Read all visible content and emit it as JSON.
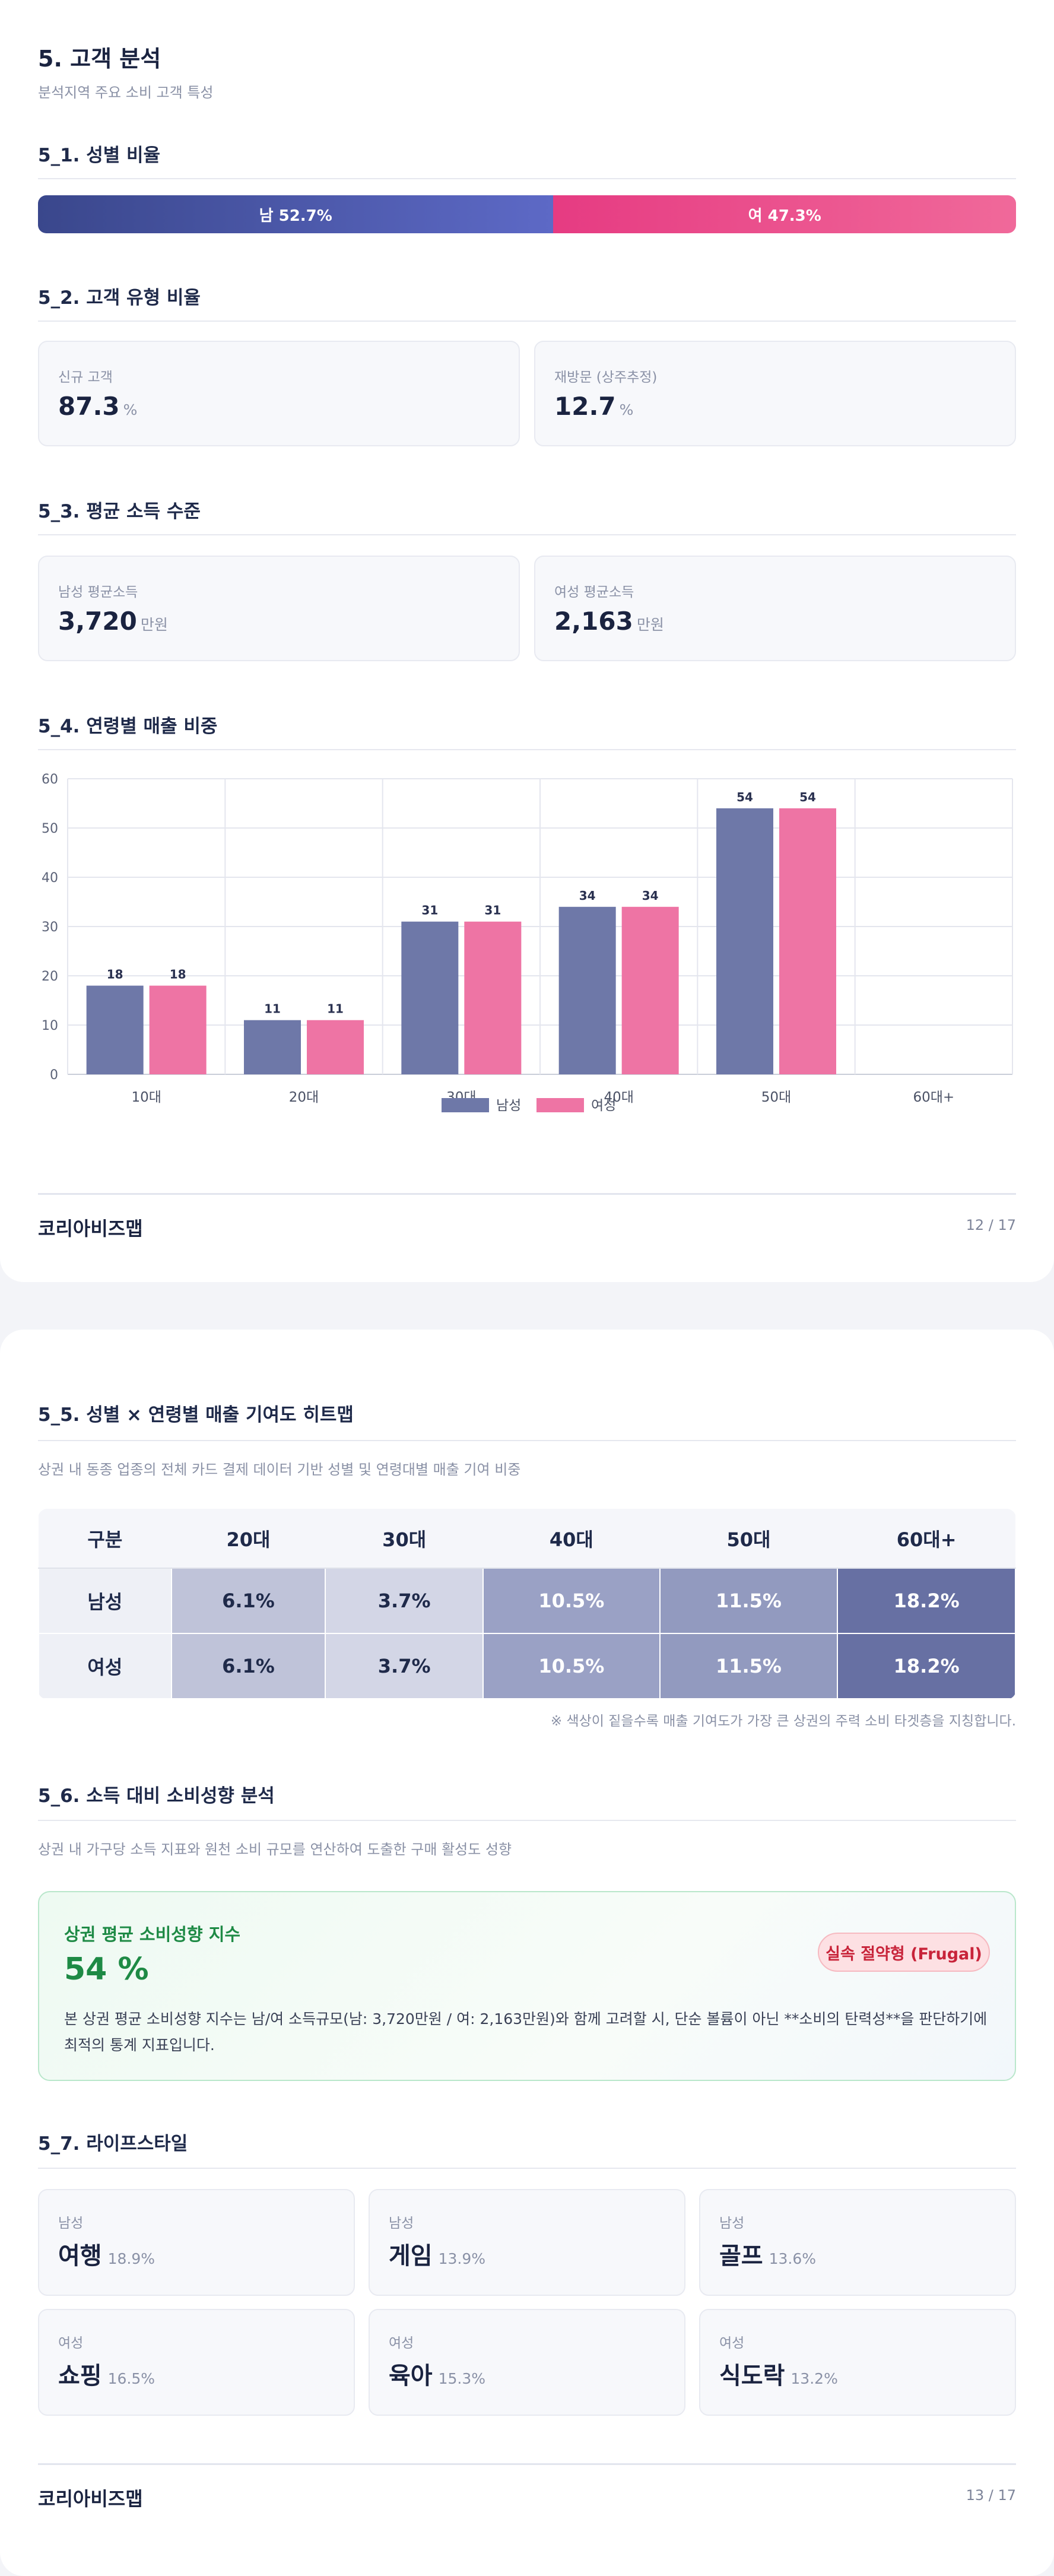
{
  "page1": {
    "title": "5. 고객 분석",
    "subtitle": "분석지역 주요 소비 고객 특성",
    "gender_ratio": {
      "heading": "5_1. 성별 비율",
      "male_label": "남 52.7%",
      "female_label": "여 47.3%",
      "male_share": 52.7,
      "female_share": 47.3,
      "male_color": "#4a56a8",
      "female_color": "#ec4f8d"
    },
    "customer_type": {
      "heading": "5_2. 고객 유형 비율",
      "cards": [
        {
          "label": "신규 고객",
          "value": "87.3",
          "unit": "%"
        },
        {
          "label": "재방문 (상주추정)",
          "value": "12.7",
          "unit": "%"
        }
      ]
    },
    "income": {
      "heading": "5_3. 평균 소득 수준",
      "cards": [
        {
          "label": "남성 평균소득",
          "value": "3,720",
          "unit": "만원"
        },
        {
          "label": "여성 평균소득",
          "value": "2,163",
          "unit": "만원"
        }
      ]
    },
    "age_sales": {
      "heading": "5_4. 연령별 매출 비중"
    },
    "footer": {
      "brand": "코리아비즈맵",
      "page": "12 / 17"
    }
  },
  "chart_data": {
    "type": "bar",
    "categories": [
      "10대",
      "20대",
      "30대",
      "40대",
      "50대",
      "60대+"
    ],
    "series": [
      {
        "name": "남성",
        "values": [
          18,
          11,
          31,
          34,
          54,
          null
        ],
        "color": "#6e78a8"
      },
      {
        "name": "여성",
        "values": [
          18,
          11,
          31,
          34,
          54,
          null
        ],
        "color": "#ee74a4"
      }
    ],
    "ylim": [
      0,
      60
    ],
    "yticks": [
      0,
      10,
      20,
      30,
      40,
      50,
      60
    ],
    "grid": true,
    "legend": "bottom",
    "title": "",
    "xlabel": "",
    "ylabel": ""
  },
  "page2": {
    "heatmap": {
      "heading": "5_5. 성별 × 연령별 매출 기여도 히트맵",
      "description": "상권 내 동종 업종의 전체 카드 결제 데이터 기반 성별 및 연령대별 매출 기여 비중",
      "columns": [
        "구분",
        "20대",
        "30대",
        "40대",
        "50대",
        "60대+"
      ],
      "rows": [
        {
          "label": "남성",
          "cells": [
            "6.1%",
            "3.7%",
            "10.5%",
            "11.5%",
            "18.2%"
          ]
        },
        {
          "label": "여성",
          "cells": [
            "6.1%",
            "3.7%",
            "10.5%",
            "11.5%",
            "18.2%"
          ]
        }
      ],
      "cell_colors": [
        "#bfc3d9",
        "#d3d6e6",
        "#9aa1c5",
        "#929abf",
        "#6770a3"
      ],
      "cell_text_colors": [
        "#1f2a4a",
        "#1f2a4a",
        "#ffffff",
        "#ffffff",
        "#ffffff"
      ],
      "note": "※ 색상이 짙을수록 매출 기여도가 가장 큰 상권의 주력 소비 타겟층을 지칭합니다."
    },
    "spending": {
      "heading": "5_6. 소득 대비 소비성향 분석",
      "description": "상권 내 가구당 소득 지표와 원천 소비 규모를 연산하여 도출한 구매 활성도 성향",
      "card_title": "상권 평균 소비성향 지수",
      "value": "54 %",
      "badge": "실속 절약형 (Frugal)",
      "body": "본 상권 평균 소비성향 지수는 남/여 소득규모(남: 3,720만원 / 여: 2,163만원)와 함께 고려할 시, 단순 볼륨이 아닌 **소비의 탄력성**을 판단하기에 최적의 통계 지표입니다.",
      "accent": "#1e8a45"
    },
    "lifestyle": {
      "heading": "5_7. 라이프스타일",
      "items": [
        {
          "gender": "남성",
          "name": "여행",
          "pct": "18.9%"
        },
        {
          "gender": "남성",
          "name": "게임",
          "pct": "13.9%"
        },
        {
          "gender": "남성",
          "name": "골프",
          "pct": "13.6%"
        },
        {
          "gender": "여성",
          "name": "쇼핑",
          "pct": "16.5%"
        },
        {
          "gender": "여성",
          "name": "육아",
          "pct": "15.3%"
        },
        {
          "gender": "여성",
          "name": "식도락",
          "pct": "13.2%"
        }
      ]
    },
    "footer": {
      "brand": "코리아비즈맵",
      "page": "13 / 17"
    }
  }
}
